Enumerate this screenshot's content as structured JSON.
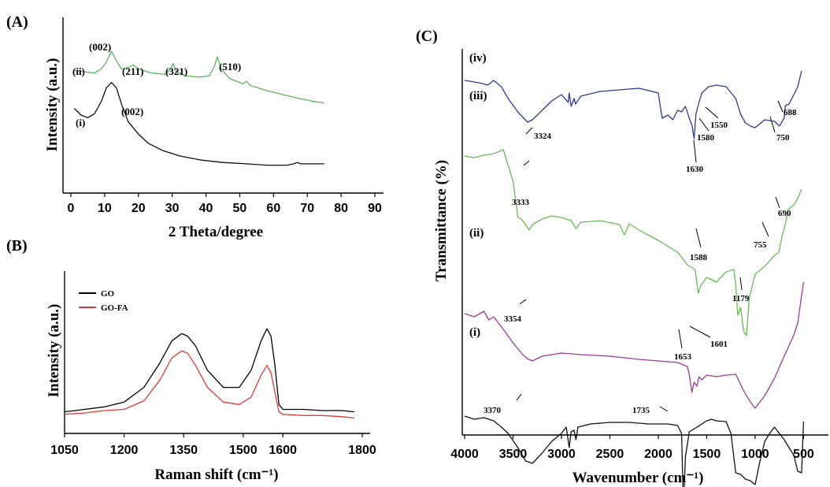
{
  "chart_data": [
    {
      "panel": "(A)",
      "type": "line",
      "xlabel": "2 Theta/degree",
      "ylabel": "Intensity (a.u.)",
      "xlim": [
        0,
        90
      ],
      "xticks": [
        0,
        10,
        20,
        30,
        40,
        50,
        60,
        70,
        80,
        90
      ],
      "series": [
        {
          "name": "(ii)",
          "color": "#5cb85c",
          "x": [
            1,
            4,
            7,
            9,
            10.5,
            12,
            13.5,
            15,
            17,
            18.5,
            20,
            24,
            28,
            29.5,
            30.3,
            31.2,
            34,
            38,
            41,
            42.5,
            43.4,
            44.5,
            47,
            51,
            52,
            53,
            58,
            63,
            68,
            72,
            75
          ],
          "y": [
            83,
            82,
            81,
            84,
            89,
            97,
            90,
            84,
            85,
            87,
            84,
            81,
            80,
            84,
            88,
            82,
            79,
            78,
            79,
            86,
            93,
            84,
            77,
            73,
            75,
            72,
            68,
            65,
            62,
            60,
            59
          ]
        },
        {
          "name": "(i)",
          "color": "#111111",
          "x": [
            1,
            3,
            5,
            7,
            9,
            10.5,
            12,
            13.5,
            15,
            17,
            20,
            23,
            27,
            32,
            38,
            45,
            52,
            58,
            64,
            66,
            67,
            68,
            70,
            75
          ],
          "y": [
            55,
            50,
            48,
            51,
            60,
            70,
            74,
            70,
            58,
            45,
            36,
            29,
            24,
            20,
            17,
            15,
            14,
            13,
            13,
            14,
            15,
            14,
            14,
            14
          ]
        }
      ],
      "annotations": [
        "(002)",
        "(211)",
        "(321)",
        "(510)",
        "(002)",
        "(ii)",
        "(i)"
      ]
    },
    {
      "panel": "(B)",
      "type": "line",
      "xlabel": "Raman shift (cm⁻¹)",
      "ylabel": "Intensity (a.u.)",
      "xlim": [
        1050,
        1800
      ],
      "xticks": [
        1050,
        1200,
        1350,
        1500,
        1600,
        1800
      ],
      "legend": "top-left",
      "series": [
        {
          "name": "GO",
          "color": "#000000",
          "x": [
            1050,
            1100,
            1150,
            1200,
            1250,
            1290,
            1320,
            1345,
            1360,
            1380,
            1410,
            1450,
            1490,
            1520,
            1545,
            1560,
            1570,
            1580,
            1590,
            1600,
            1650,
            1700,
            1750,
            1780
          ],
          "y": [
            8,
            10,
            12,
            16,
            28,
            48,
            66,
            72,
            70,
            62,
            42,
            28,
            28,
            42,
            66,
            76,
            70,
            46,
            14,
            10,
            10,
            9,
            9,
            8
          ]
        },
        {
          "name": "GO-FA",
          "color": "#e53935",
          "x": [
            1050,
            1100,
            1150,
            1200,
            1250,
            1290,
            1320,
            1345,
            1360,
            1380,
            1410,
            1450,
            1490,
            1520,
            1545,
            1560,
            1570,
            1580,
            1590,
            1600,
            1650,
            1700,
            1750,
            1780
          ],
          "y": [
            6,
            7,
            9,
            10,
            17,
            34,
            52,
            58,
            56,
            46,
            28,
            16,
            14,
            20,
            38,
            46,
            40,
            24,
            8,
            6,
            5,
            5,
            4,
            3
          ]
        }
      ]
    },
    {
      "panel": "(C)",
      "type": "line",
      "xlabel": "Wavenumber (cm⁻¹)",
      "ylabel": "Transmittance (%)",
      "xlim": [
        4000,
        300
      ],
      "xticks": [
        4000,
        3500,
        3000,
        2500,
        2000,
        1500,
        1000,
        500
      ],
      "series": [
        {
          "name": "(iv)",
          "color": "#2f3a8f",
          "x": [
            4000,
            3850,
            3760,
            3700,
            3620,
            3550,
            3450,
            3350,
            3300,
            3200,
            3100,
            3000,
            2930,
            2920,
            2900,
            2870,
            2855,
            2800,
            2600,
            2400,
            2200,
            2000,
            1960,
            1900,
            1850,
            1800,
            1760,
            1720,
            1680,
            1650,
            1630,
            1610,
            1580,
            1550,
            1480,
            1400,
            1300,
            1200,
            1150,
            1100,
            1050,
            1000,
            900,
            800,
            750,
            700,
            688,
            650,
            600,
            560,
            520
          ],
          "y": [
            22,
            25,
            28,
            22,
            30,
            45,
            62,
            75,
            72,
            60,
            48,
            40,
            50,
            38,
            55,
            45,
            52,
            42,
            36,
            34,
            32,
            38,
            70,
            66,
            72,
            60,
            62,
            55,
            70,
            80,
            96,
            64,
            50,
            38,
            30,
            28,
            30,
            45,
            65,
            76,
            80,
            82,
            72,
            74,
            80,
            70,
            54,
            52,
            40,
            30,
            10
          ]
        },
        {
          "name": "(iii)",
          "color": "#66bb55",
          "x": [
            4000,
            3900,
            3800,
            3700,
            3600,
            3500,
            3450,
            3400,
            3333,
            3300,
            3200,
            3100,
            3000,
            2900,
            2850,
            2800,
            2600,
            2400,
            2350,
            2300,
            2200,
            2000,
            1800,
            1700,
            1620,
            1588,
            1560,
            1500,
            1400,
            1300,
            1220,
            1200,
            1179,
            1150,
            1120,
            1090,
            1060,
            1000,
            900,
            800,
            755,
            720,
            690,
            660,
            600,
            560,
            520
          ],
          "y": [
            118,
            120,
            117,
            115,
            110,
            150,
            195,
            200,
            212,
            205,
            198,
            194,
            196,
            200,
            210,
            202,
            200,
            205,
            218,
            204,
            212,
            225,
            240,
            256,
            262,
            292,
            282,
            272,
            278,
            265,
            262,
            282,
            320,
            310,
            340,
            346,
            298,
            268,
            258,
            244,
            240,
            218,
            206,
            186,
            180,
            172,
            160
          ]
        },
        {
          "name": "(ii)",
          "color": "#9c3a9c",
          "x": [
            4000,
            3900,
            3800,
            3750,
            3700,
            3600,
            3500,
            3400,
            3354,
            3300,
            3200,
            3000,
            2800,
            2500,
            2200,
            2000,
            1800,
            1700,
            1680,
            1653,
            1630,
            1601,
            1580,
            1550,
            1500,
            1400,
            1300,
            1200,
            1150,
            1100,
            1050,
            1000,
            900,
            800,
            700,
            600,
            560,
            520,
            500
          ],
          "y": [
            318,
            322,
            315,
            326,
            322,
            338,
            355,
            370,
            375,
            378,
            372,
            368,
            370,
            372,
            376,
            378,
            380,
            385,
            395,
            418,
            405,
            410,
            398,
            402,
            396,
            398,
            396,
            395,
            408,
            420,
            430,
            438,
            422,
            400,
            372,
            345,
            330,
            295,
            278
          ]
        },
        {
          "name": "(i)",
          "color": "#111111",
          "x": [
            4000,
            3900,
            3800,
            3700,
            3620,
            3550,
            3450,
            3370,
            3300,
            3200,
            3100,
            3000,
            2950,
            2920,
            2900,
            2870,
            2850,
            2830,
            2700,
            2500,
            2300,
            2100,
            1900,
            1800,
            1760,
            1745,
            1735,
            1720,
            1680,
            1600,
            1500,
            1450,
            1400,
            1300,
            1250,
            1200,
            1150,
            1100,
            1050,
            1000,
            950,
            900,
            850,
            800,
            700,
            600,
            560,
            520,
            500
          ],
          "y": [
            448,
            452,
            450,
            454,
            462,
            470,
            488,
            505,
            508,
            495,
            480,
            470,
            462,
            488,
            468,
            466,
            478,
            462,
            458,
            456,
            456,
            458,
            458,
            460,
            470,
            540,
            548,
            500,
            468,
            462,
            454,
            452,
            454,
            455,
            470,
            520,
            522,
            528,
            530,
            535,
            505,
            480,
            470,
            462,
            478,
            498,
            518,
            520,
            455
          ]
        }
      ],
      "annotations": [
        "3324",
        "1630",
        "1580",
        "1550",
        "750",
        "688",
        "3333",
        "1588",
        "1179",
        "755",
        "690",
        "3354",
        "1653",
        "1601",
        "3370",
        "1735",
        "(iv)",
        "(iii)",
        "(ii)",
        "(i)"
      ]
    }
  ]
}
